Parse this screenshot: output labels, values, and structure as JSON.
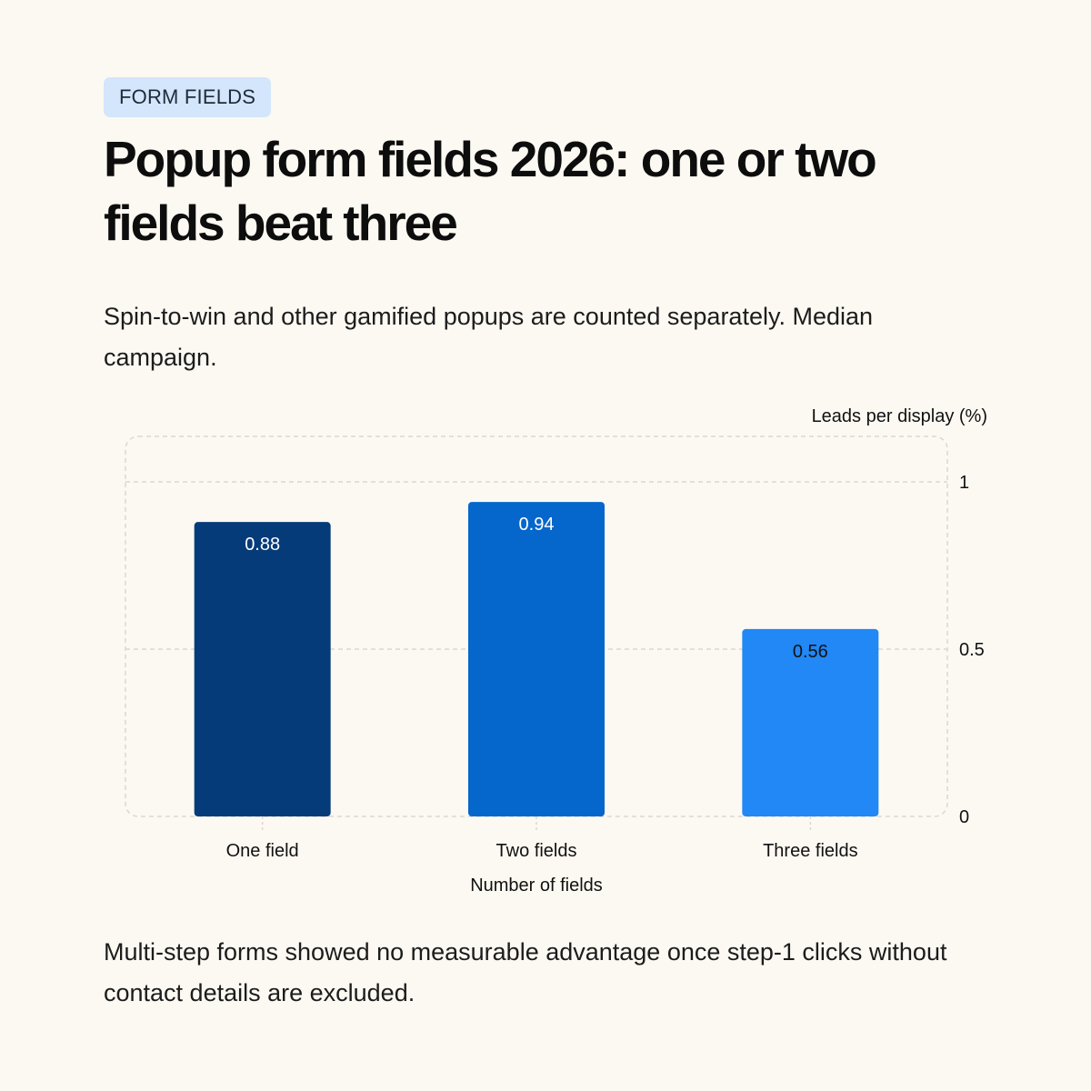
{
  "header": {
    "tag": "FORM FIELDS",
    "title": "Popup form fields 2026: one or two fields beat three",
    "subtitle": "Spin-to-win and other gamified popups are counted separately. Median campaign."
  },
  "footnote": "Multi-step forms showed no measurable advantage once step-1 clicks without contact details are excluded.",
  "chart_data": {
    "type": "bar",
    "categories": [
      "One field",
      "Two fields",
      "Three fields"
    ],
    "values": [
      0.88,
      0.94,
      0.56
    ],
    "value_labels": [
      "0.88",
      "0.94",
      "0.56"
    ],
    "colors": [
      "#063b7a",
      "#0566cc",
      "#2188f5"
    ],
    "label_colors": [
      "#ffffff",
      "#ffffff",
      "#111111"
    ],
    "xlabel": "Number of fields",
    "ylabel": "Leads per display (%)",
    "ylim": [
      0,
      1
    ],
    "yticks": [
      0,
      0.5,
      1
    ],
    "ytick_labels": [
      "0",
      "0.5",
      "1"
    ],
    "y_axis_side": "right",
    "grid": true
  }
}
